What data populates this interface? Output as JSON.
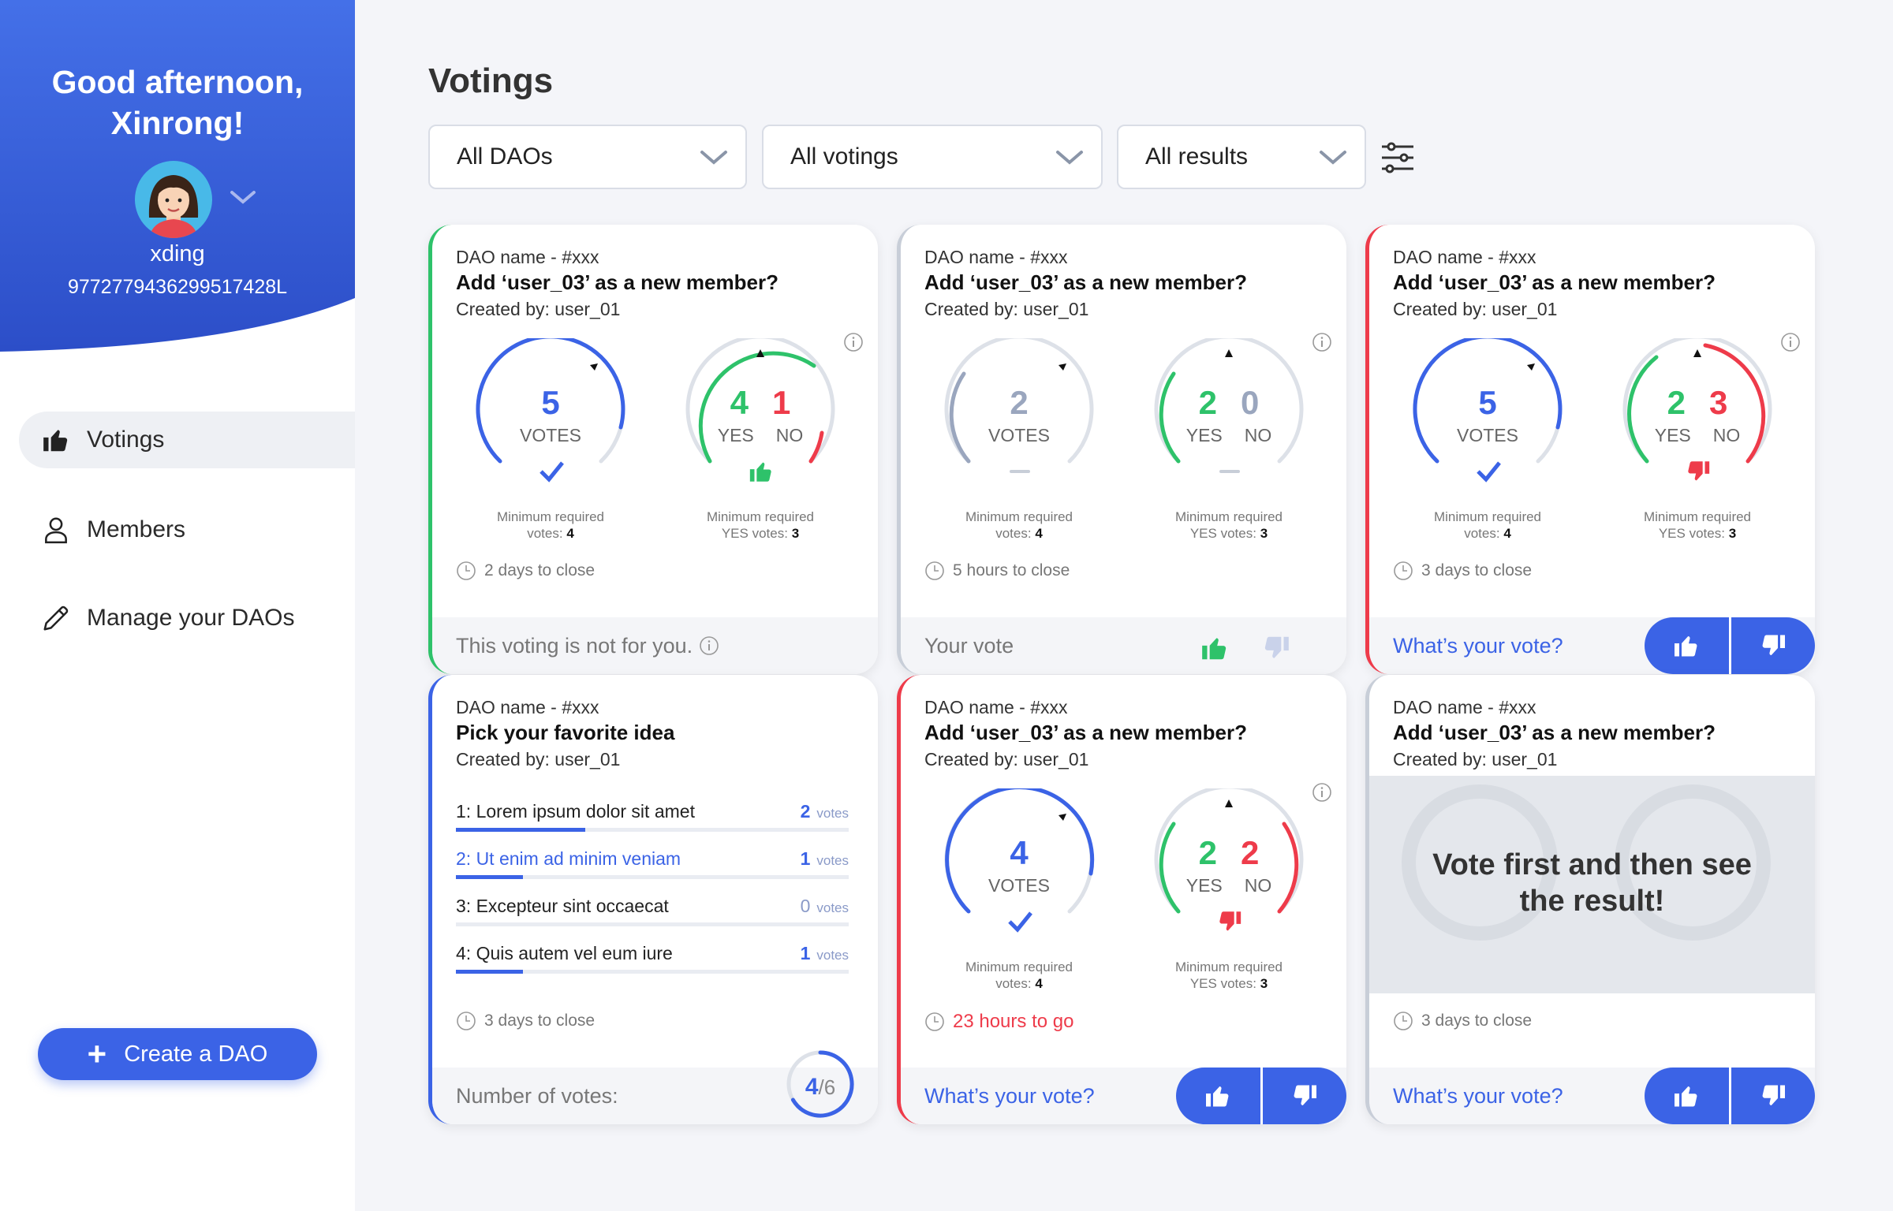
{
  "sidebar": {
    "greeting_line1": "Good afternoon,",
    "greeting_line2": "Xinrong!",
    "username": "xding",
    "user_id": "9772779436299517428L",
    "nav": [
      {
        "label": "Votings",
        "icon": "thumbs-up-icon",
        "active": true
      },
      {
        "label": "Members",
        "icon": "person-icon",
        "active": false
      },
      {
        "label": "Manage your DAOs",
        "icon": "pencil-icon",
        "active": false
      }
    ],
    "create_label": "Create a DAO"
  },
  "page": {
    "title": "Votings",
    "filters": [
      "All DAOs",
      "All votings",
      "All results"
    ]
  },
  "colors": {
    "blue": "#3b63e6",
    "green": "#2ec26a",
    "red": "#ee3b4a",
    "gray": "#c8ced8"
  },
  "labels": {
    "votes": "VOTES",
    "yes": "YES",
    "no": "NO",
    "min_req": "Minimum required",
    "min_votes": "votes:",
    "min_yes": "YES votes:",
    "votes_unit": "votes"
  },
  "cards": [
    {
      "dao": "DAO name - #xxx",
      "question": "Add ‘user_03’ as a new member?",
      "created": "Created by: user_01",
      "votes": "5",
      "yes": "4",
      "no": "1",
      "min_votes": "4",
      "min_yes": "3",
      "close": "2 days to close",
      "footer": "This voting is not for you."
    },
    {
      "dao": "DAO name - #xxx",
      "question": "Add ‘user_03’ as a new member?",
      "created": "Created by: user_01",
      "votes": "2",
      "yes": "2",
      "no": "0",
      "min_votes": "4",
      "min_yes": "3",
      "close": "5 hours to close",
      "footer": "Your vote"
    },
    {
      "dao": "DAO name - #xxx",
      "question": "Add ‘user_03’ as a new member?",
      "created": "Created by: user_01",
      "votes": "5",
      "yes": "2",
      "no": "3",
      "min_votes": "4",
      "min_yes": "3",
      "close": "3 days to close",
      "footer": "What’s your vote?"
    },
    {
      "dao": "DAO name - #xxx",
      "question": "Pick your favorite idea",
      "created": "Created by: user_01",
      "options": [
        {
          "label": "1: Lorem ipsum dolor sit amet",
          "votes": "2",
          "share": 0.33
        },
        {
          "label": "2: Ut enim ad minim veniam",
          "votes": "1",
          "share": 0.17
        },
        {
          "label": "3: Excepteur sint occaecat",
          "votes": "0",
          "share": 0
        },
        {
          "label": "4: Quis autem vel eum iure",
          "votes": "1",
          "share": 0.17
        }
      ],
      "close": "3 days to close",
      "footer": "Number of votes:",
      "num_votes": "4",
      "num_total": "/6"
    },
    {
      "dao": "DAO name - #xxx",
      "question": "Add ‘user_03’ as a new member?",
      "created": "Created by: user_01",
      "votes": "4",
      "yes": "2",
      "no": "2",
      "min_votes": "4",
      "min_yes": "3",
      "close": "23 hours to go",
      "footer": "What’s your vote?"
    },
    {
      "dao": "DAO name - #xxx",
      "question": "Add ‘user_03’ as a new member?",
      "created": "Created by: user_01",
      "hidden_msg_1": "Vote first and then see",
      "hidden_msg_2": "the result!",
      "close": "3 days to close",
      "footer": "What’s your vote?"
    }
  ]
}
